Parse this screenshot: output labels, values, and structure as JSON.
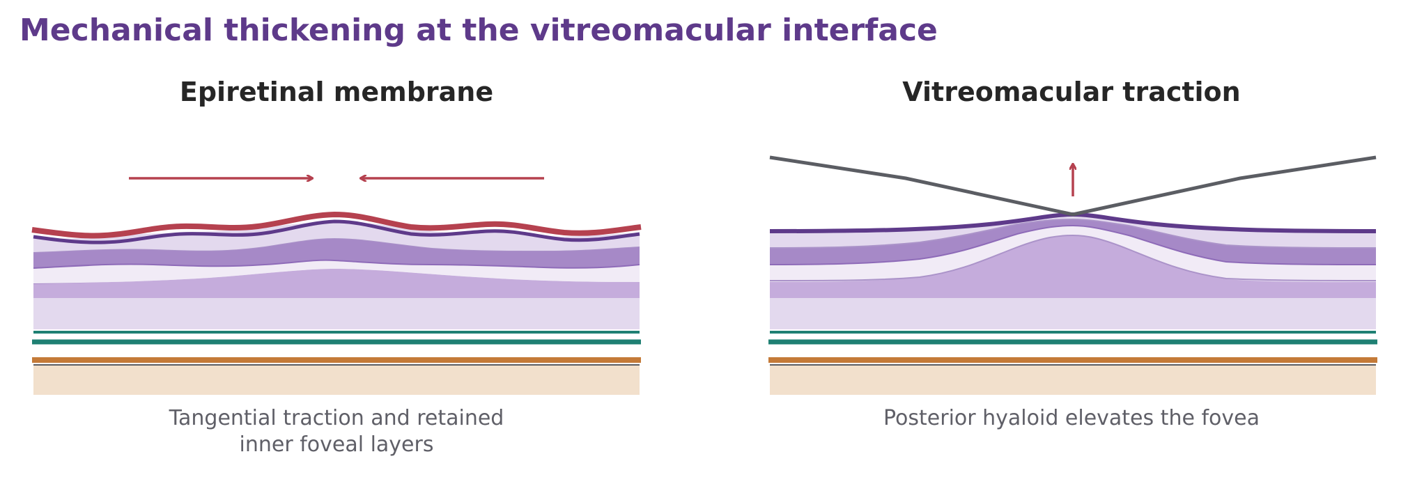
{
  "title": "Mechanical thickening at the vitreomacular interface",
  "panels": [
    {
      "title": "Epiretinal membrane",
      "caption_line1": "Tangential traction and retained",
      "caption_line2": "inner foveal layers"
    },
    {
      "title": "Vitreomacular traction",
      "caption_line1": "Posterior hyaloid elevates the fovea"
    }
  ],
  "colors": {
    "title": "#5e3a8a",
    "membrane": "#b5414f",
    "ilm": "#5e3a8a",
    "layer_dark": "#a689c7",
    "layer_mid": "#c5acdc",
    "layer_light": "#e3d9ee",
    "layer_pale": "#f1ebf6",
    "rpe_teal": "#1f8073",
    "choroid_orange": "#c47a38",
    "choroid": "#f2e0cc",
    "hyaloid": "#5b5d63",
    "arrow": "#b5414f"
  }
}
